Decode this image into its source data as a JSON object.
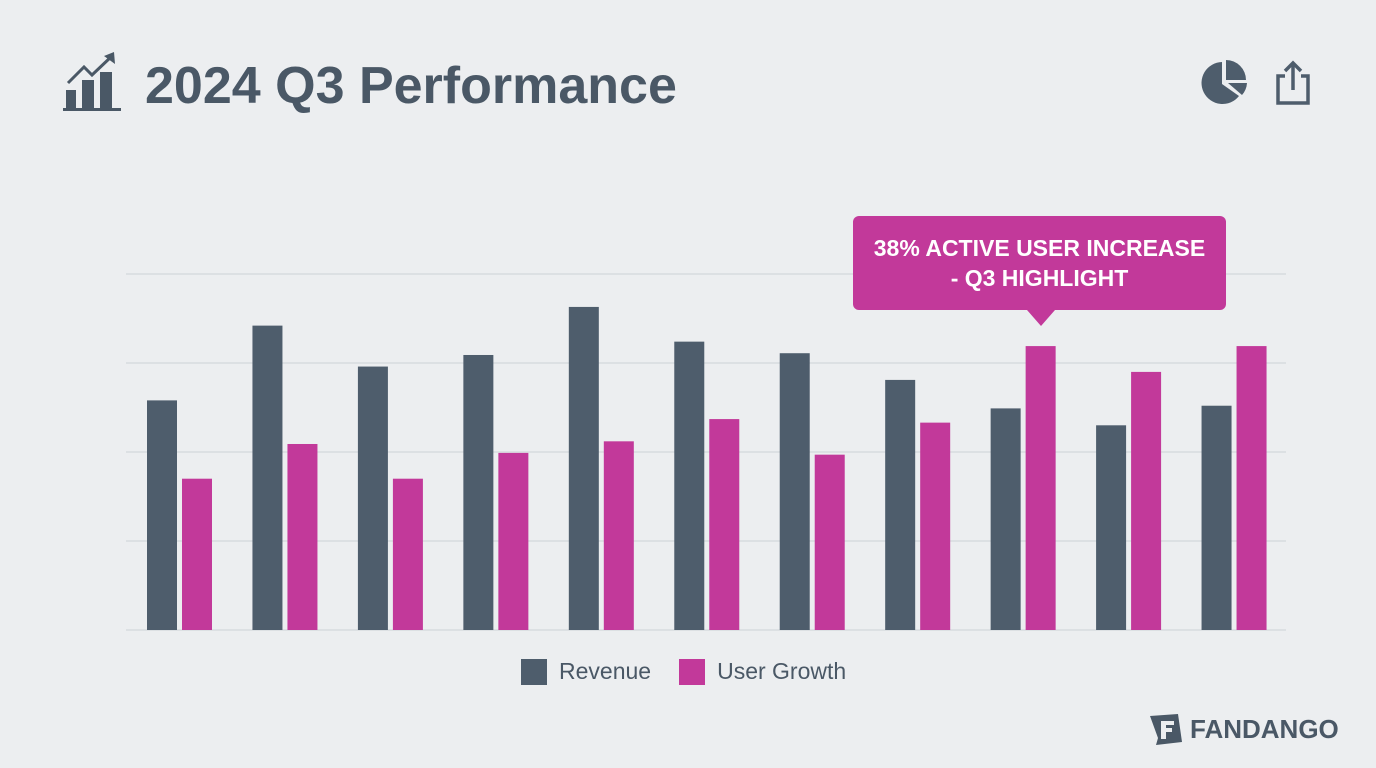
{
  "header": {
    "title": "2024 Q3 Performance",
    "title_icon": "growth-chart-icon",
    "actions": [
      {
        "icon": "pie-chart-icon"
      },
      {
        "icon": "share-icon"
      }
    ]
  },
  "colors": {
    "background": "#eceef0",
    "revenue": "#4e5d6c",
    "user_growth": "#c2399a",
    "text": "#4a5866"
  },
  "chart_data": {
    "type": "bar",
    "title": "2024 Q3 Performance",
    "xlabel": "",
    "ylabel": "",
    "ylim": [
      0,
      4
    ],
    "grid": true,
    "legend_placement": "bottom",
    "series": [
      {
        "name": "Revenue",
        "color": "#4e5d6c",
        "values": [
          2.58,
          3.42,
          2.96,
          3.09,
          3.63,
          3.24,
          3.11,
          2.81,
          2.49,
          2.3,
          2.52
        ]
      },
      {
        "name": "User Growth",
        "color": "#c2399a",
        "values": [
          1.7,
          2.09,
          1.7,
          1.99,
          2.12,
          2.37,
          1.97,
          2.33,
          3.19,
          2.9,
          3.19
        ]
      }
    ],
    "annotation": {
      "line1": "38% ACTIVE USER INCREASE",
      "line2": "- Q3 HIGHLIGHT",
      "target_index": 8,
      "target_series": "User Growth"
    }
  },
  "brand": {
    "name": "FANDANGO"
  }
}
